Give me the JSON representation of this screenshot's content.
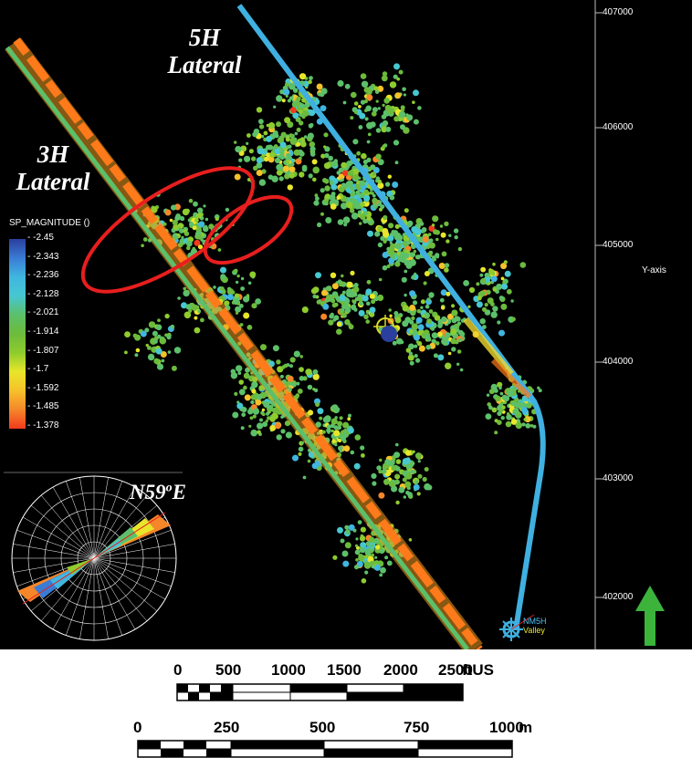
{
  "laterals": {
    "h5_line1": "5H",
    "h5_line2": "Lateral",
    "h3_line1": "3H",
    "h3_line2": "Lateral"
  },
  "colorbar": {
    "title": "SP_MAGNITUDE ()",
    "ticks": [
      "-2.45",
      "-2.343",
      "-2.236",
      "-2.128",
      "-2.021",
      "-1.914",
      "-1.807",
      "-1.7",
      "-1.592",
      "-1.485",
      "-1.378"
    ],
    "colors": [
      "#2a3f9e",
      "#3a7bd5",
      "#40b6e0",
      "#46c7d2",
      "#5cc06a",
      "#6cbb3c",
      "#8fcc2e",
      "#e8e62a",
      "#f6c12a",
      "#f5862a",
      "#f23a1e"
    ]
  },
  "y_axis": {
    "label": "Y-axis",
    "ticks": [
      "407000",
      "406000",
      "405000",
      "404000",
      "403000",
      "402000"
    ]
  },
  "rose": {
    "label_main": "N59",
    "label_sup": "o",
    "label_end": "E"
  },
  "well": {
    "label1": "NM5H",
    "label2": "Valley"
  },
  "scalebar_ft": {
    "ticks": [
      "0",
      "500",
      "1000",
      "1500",
      "2000",
      "2500"
    ],
    "unit": "ftUS"
  },
  "scalebar_m": {
    "ticks": [
      "0",
      "250",
      "500",
      "750",
      "1000"
    ],
    "unit": "m"
  },
  "colors": {
    "background": "#000000",
    "lateral_3h": "#ff7a1a",
    "lateral_5h": "#3fb0e0",
    "ellipse": "#e81e1e",
    "north_arrow": "#3cb43c"
  }
}
